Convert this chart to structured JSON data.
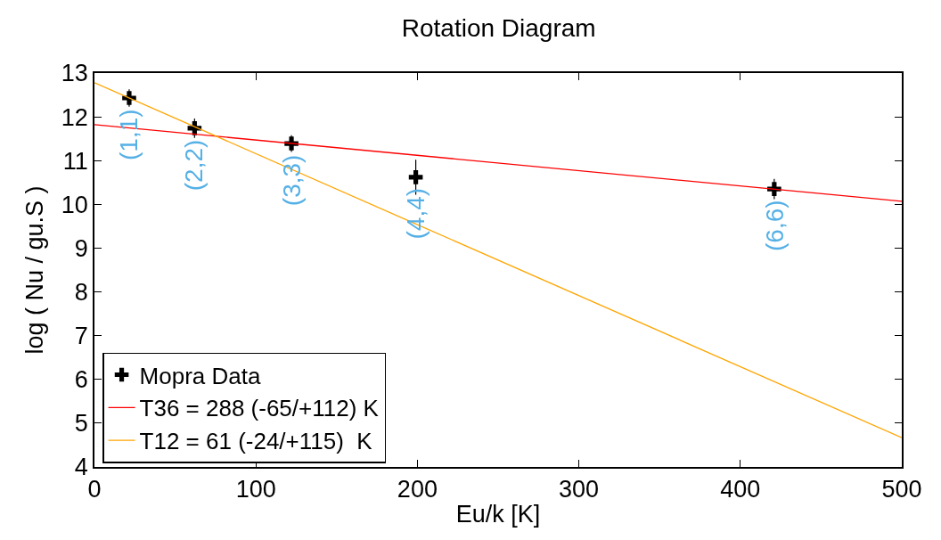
{
  "chart_data": {
    "type": "scatter",
    "title": "Rotation Diagram",
    "xlabel": "Eu/k [K]",
    "ylabel": "log ( Nu / gu.S )",
    "xlim": [
      0,
      500
    ],
    "xticks": [
      0,
      100,
      200,
      300,
      400,
      500
    ],
    "ylim": [
      4,
      13
    ],
    "yticks": [
      4,
      5,
      6,
      7,
      8,
      9,
      10,
      11,
      12,
      13
    ],
    "grid": false,
    "legend": "bottom left",
    "series": [
      {
        "name": "Mopra Data",
        "marker": "cross",
        "color": "#000000",
        "x": [
          21.5,
          62,
          122,
          199,
          421
        ],
        "values": [
          12.43,
          11.74,
          11.39,
          10.62,
          10.35
        ],
        "errors": [
          0.2,
          0.22,
          0.19,
          0.4,
          0.23
        ]
      },
      {
        "name": "T36 = 288 (-65/+112) K",
        "type": "line",
        "color": "#ff0000",
        "x": [
          0,
          500
        ],
        "values": [
          11.82,
          10.07
        ]
      },
      {
        "name": "T12 = 61 (-24/+115)  K",
        "type": "line",
        "color": "#ffa500",
        "x": [
          0,
          500
        ],
        "values": [
          12.78,
          4.67
        ]
      }
    ],
    "annotations": [
      {
        "text": "(1,1)",
        "x": 21.5,
        "y": 12.43
      },
      {
        "text": "(2,2)",
        "x": 62,
        "y": 11.74
      },
      {
        "text": "(3,3)",
        "x": 122,
        "y": 11.39
      },
      {
        "text": "(4,4)",
        "x": 199,
        "y": 10.62
      },
      {
        "text": "(6,6)",
        "x": 421,
        "y": 10.35
      }
    ]
  }
}
